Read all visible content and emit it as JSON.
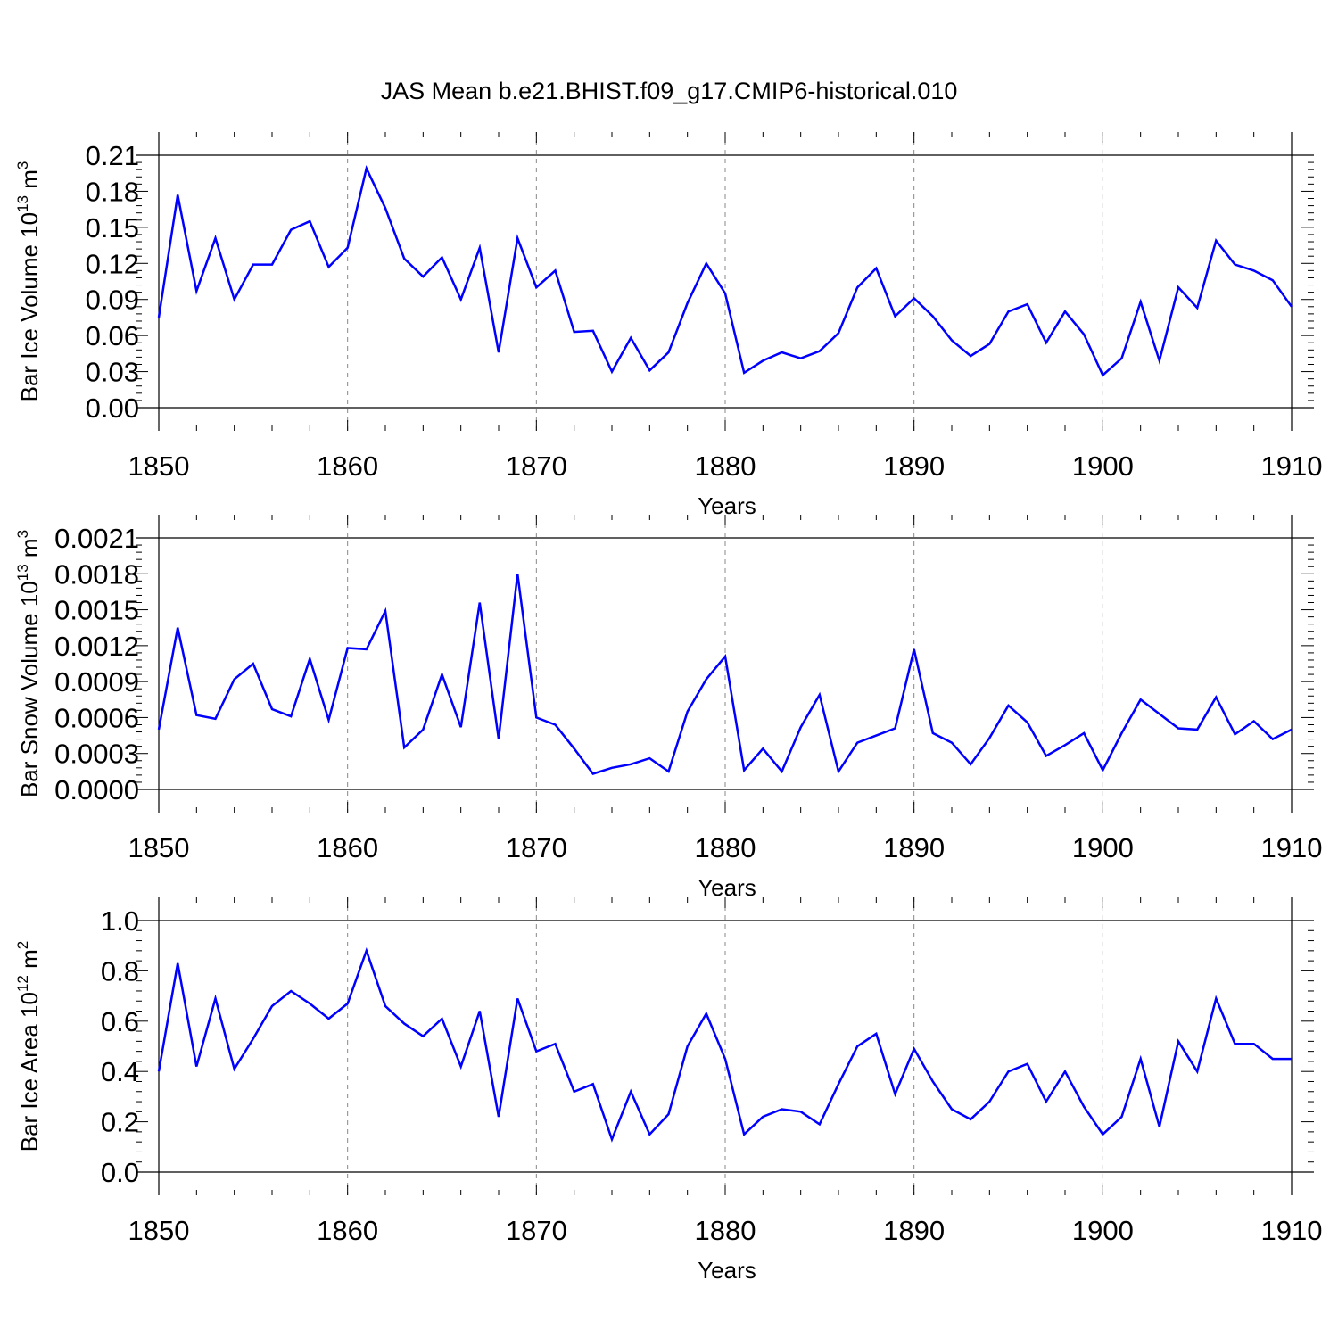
{
  "figure": {
    "title": "JAS Mean b.e21.BHIST.f09_g17.CMIP6-historical.010"
  },
  "colors": {
    "line": "#0000ff",
    "axis": "#000000",
    "grid": "#888888"
  },
  "chart_data": [
    {
      "type": "line",
      "ylabel": "Bar Ice Volume 10",
      "ylabel_exp": "13",
      "ylabel_unit": " m",
      "ylabel_unit_exp": "3",
      "xlabel": "Years",
      "xlim": [
        1850,
        1910
      ],
      "ylim": [
        0,
        0.21
      ],
      "xticks": [
        1850,
        1860,
        1870,
        1880,
        1890,
        1900,
        1910
      ],
      "xtick_labels": [
        "1850",
        "1860",
        "1870",
        "1880",
        "1890",
        "1900",
        "1910"
      ],
      "yticks": [
        0,
        0.03,
        0.06,
        0.09,
        0.12,
        0.15,
        0.18,
        0.21
      ],
      "ytick_labels": [
        "0.00",
        "0.03",
        "0.06",
        "0.09",
        "0.12",
        "0.15",
        "0.18",
        "0.21"
      ],
      "x_start": 1850,
      "series": [
        {
          "name": "Bar Ice Volume",
          "values": [
            0.075,
            0.177,
            0.097,
            0.141,
            0.09,
            0.119,
            0.119,
            0.148,
            0.155,
            0.117,
            0.133,
            0.199,
            0.166,
            0.124,
            0.109,
            0.125,
            0.09,
            0.133,
            0.046,
            0.141,
            0.1,
            0.114,
            0.063,
            0.064,
            0.03,
            0.058,
            0.031,
            0.046,
            0.087,
            0.12,
            0.095,
            0.029,
            0.039,
            0.046,
            0.041,
            0.047,
            0.062,
            0.1,
            0.116,
            0.076,
            0.091,
            0.076,
            0.056,
            0.043,
            0.053,
            0.08,
            0.086,
            0.054,
            0.08,
            0.061,
            0.027,
            0.041,
            0.088,
            0.039,
            0.1,
            0.083,
            0.139,
            0.119,
            0.114,
            0.106,
            0.084
          ]
        }
      ]
    },
    {
      "type": "line",
      "ylabel": "Bar Snow Volume 10",
      "ylabel_exp": "13",
      "ylabel_unit": " m",
      "ylabel_unit_exp": "3",
      "xlabel": "Years",
      "xlim": [
        1850,
        1910
      ],
      "ylim": [
        0,
        0.0021
      ],
      "xticks": [
        1850,
        1860,
        1870,
        1880,
        1890,
        1900,
        1910
      ],
      "xtick_labels": [
        "1850",
        "1860",
        "1870",
        "1880",
        "1890",
        "1900",
        "1910"
      ],
      "yticks": [
        0,
        0.0003,
        0.0006,
        0.0009,
        0.0012,
        0.0015,
        0.0018,
        0.0021
      ],
      "ytick_labels": [
        "0.0000",
        "0.0003",
        "0.0006",
        "0.0009",
        "0.0012",
        "0.0015",
        "0.0018",
        "0.0021"
      ],
      "x_start": 1850,
      "series": [
        {
          "name": "Bar Snow Volume",
          "values": [
            0.0005,
            0.00135,
            0.00062,
            0.00059,
            0.00092,
            0.00105,
            0.00067,
            0.00061,
            0.00109,
            0.00058,
            0.00118,
            0.00117,
            0.00149,
            0.00035,
            0.0005,
            0.00096,
            0.00052,
            0.00156,
            0.00042,
            0.0018,
            0.0006,
            0.00054,
            0.00034,
            0.00013,
            0.00018,
            0.00021,
            0.00026,
            0.00015,
            0.00065,
            0.00092,
            0.00111,
            0.00016,
            0.00034,
            0.00015,
            0.00052,
            0.00079,
            0.00015,
            0.00039,
            0.00045,
            0.00051,
            0.00117,
            0.00047,
            0.00039,
            0.00021,
            0.00043,
            0.0007,
            0.00056,
            0.00028,
            0.00037,
            0.00047,
            0.00016,
            0.00047,
            0.00075,
            0.00063,
            0.00051,
            0.0005,
            0.00077,
            0.00046,
            0.00057,
            0.00042,
            0.0005
          ]
        }
      ]
    },
    {
      "type": "line",
      "ylabel": "Bar Ice Area 10",
      "ylabel_exp": "12",
      "ylabel_unit": " m",
      "ylabel_unit_exp": "2",
      "xlabel": "Years",
      "xlim": [
        1850,
        1910
      ],
      "ylim": [
        0,
        1.0
      ],
      "xticks": [
        1850,
        1860,
        1870,
        1880,
        1890,
        1900,
        1910
      ],
      "xtick_labels": [
        "1850",
        "1860",
        "1870",
        "1880",
        "1890",
        "1900",
        "1910"
      ],
      "yticks": [
        0,
        0.2,
        0.4,
        0.6,
        0.8,
        1.0
      ],
      "ytick_labels": [
        "0.0",
        "0.2",
        "0.4",
        "0.6",
        "0.8",
        "1.0"
      ],
      "x_start": 1850,
      "series": [
        {
          "name": "Bar Ice Area",
          "values": [
            0.4,
            0.83,
            0.42,
            0.69,
            0.41,
            0.53,
            0.66,
            0.72,
            0.67,
            0.61,
            0.67,
            0.88,
            0.66,
            0.59,
            0.54,
            0.61,
            0.42,
            0.64,
            0.22,
            0.69,
            0.48,
            0.51,
            0.32,
            0.35,
            0.13,
            0.32,
            0.15,
            0.23,
            0.5,
            0.63,
            0.45,
            0.15,
            0.22,
            0.25,
            0.24,
            0.19,
            0.35,
            0.5,
            0.55,
            0.31,
            0.49,
            0.36,
            0.25,
            0.21,
            0.28,
            0.4,
            0.43,
            0.28,
            0.4,
            0.26,
            0.15,
            0.22,
            0.45,
            0.18,
            0.52,
            0.4,
            0.69,
            0.51,
            0.51,
            0.45,
            0.45
          ]
        }
      ]
    }
  ]
}
